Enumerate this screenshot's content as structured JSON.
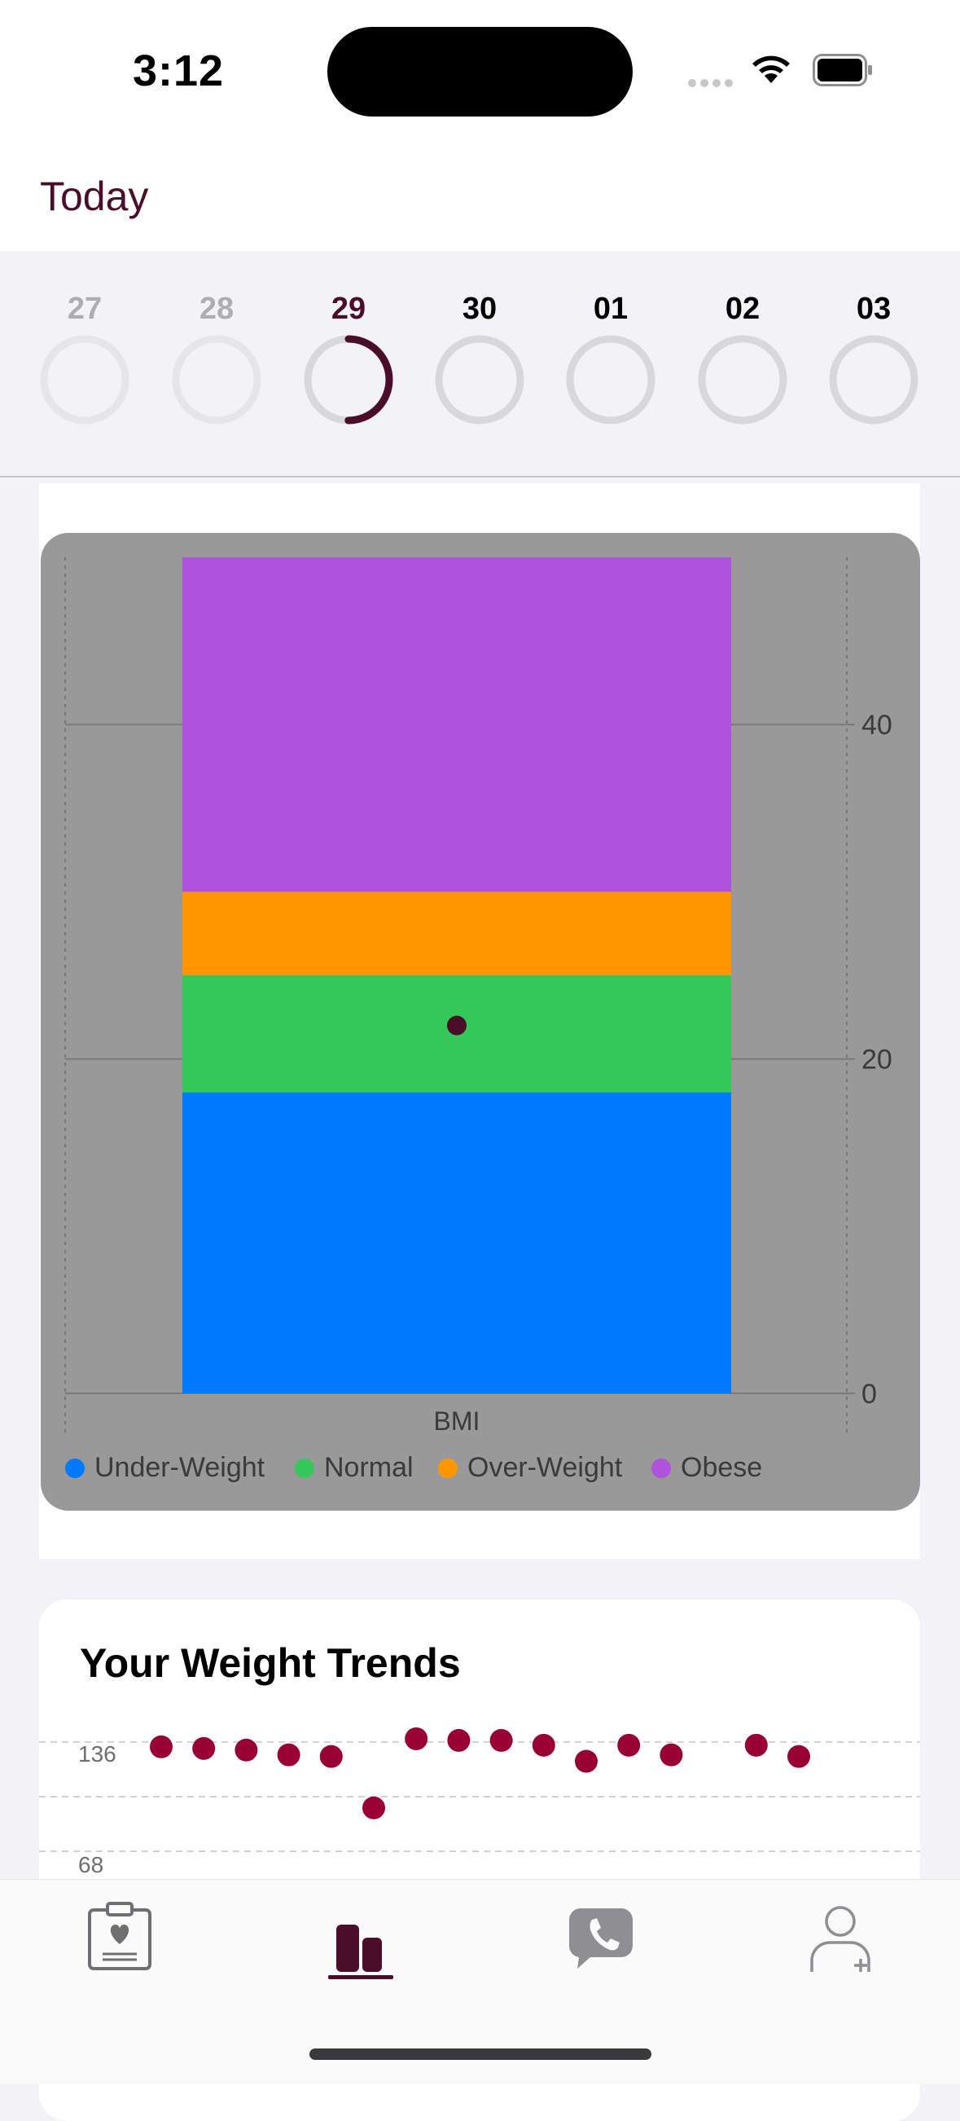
{
  "status_bar": {
    "time": "3:12"
  },
  "header": {
    "title": "Today"
  },
  "date_strip": {
    "days": [
      {
        "label": "27",
        "state": "past",
        "progress": 0
      },
      {
        "label": "28",
        "state": "past",
        "progress": 0
      },
      {
        "label": "29",
        "state": "selected",
        "progress": 0.5
      },
      {
        "label": "30",
        "state": "future",
        "progress": 0
      },
      {
        "label": "01",
        "state": "future",
        "progress": 0
      },
      {
        "label": "02",
        "state": "future",
        "progress": 0
      },
      {
        "label": "03",
        "state": "future",
        "progress": 0
      }
    ]
  },
  "chart_data": [
    {
      "type": "bar",
      "categories": [
        "BMI"
      ],
      "series": [
        {
          "name": "Under-Weight",
          "color": "#007aff",
          "range": [
            0,
            18
          ]
        },
        {
          "name": "Normal",
          "color": "#34c759",
          "range": [
            18,
            25
          ]
        },
        {
          "name": "Over-Weight",
          "color": "#ff9500",
          "range": [
            25,
            30
          ]
        },
        {
          "name": "Obese",
          "color": "#af52de",
          "range": [
            30,
            50
          ]
        }
      ],
      "marker": {
        "value": 22,
        "color": "#4a0e2a"
      },
      "xlabel": "BMI",
      "yticks": [
        0,
        20,
        40
      ],
      "ylim": [
        0,
        50
      ],
      "grid": true,
      "legend_position": "bottom"
    },
    {
      "type": "scatter",
      "title": "Your Weight Trends",
      "yticks": [
        136,
        68
      ],
      "ylim": [
        68,
        140
      ],
      "color": "#990033",
      "values": [
        133,
        132,
        131,
        128,
        127,
        95,
        138,
        137,
        137,
        134,
        124,
        134,
        128,
        null,
        134,
        127
      ]
    }
  ],
  "bmi_chart": {
    "xlabel": "BMI",
    "ytick_labels": [
      "40",
      "20",
      "0"
    ],
    "legend": [
      "Under-Weight",
      "Normal",
      "Over-Weight",
      "Obese"
    ]
  },
  "weight_trends": {
    "title": "Your Weight Trends",
    "ytick_labels": [
      "136",
      "68"
    ]
  },
  "tab_bar": {
    "tabs": [
      {
        "icon": "clipboard-heart-icon",
        "active": false
      },
      {
        "icon": "bar-chart-icon",
        "active": true
      },
      {
        "icon": "phone-bubble-icon",
        "active": false
      },
      {
        "icon": "person-add-icon",
        "active": false
      }
    ],
    "accent": "#4a0e2a"
  }
}
